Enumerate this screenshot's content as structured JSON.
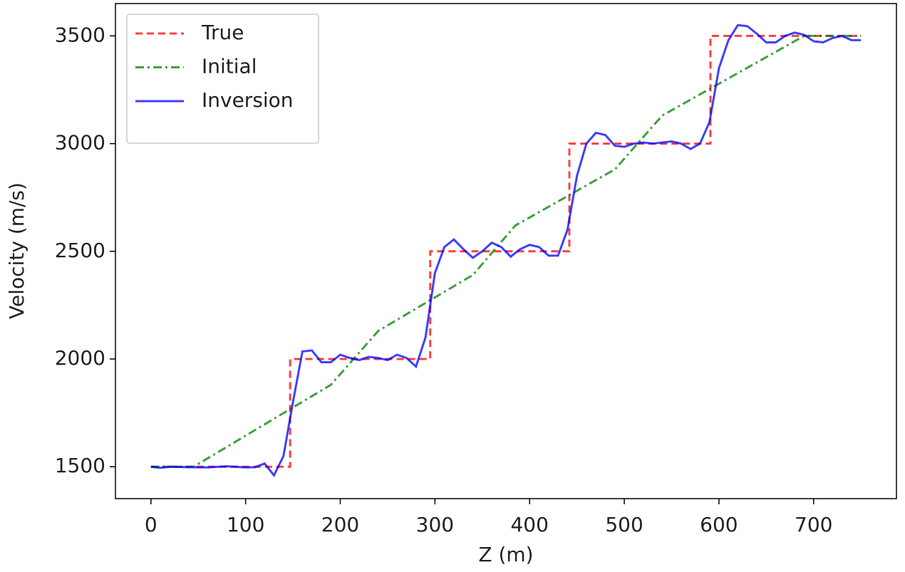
{
  "chart_data": {
    "type": "line",
    "xlabel": "Z (m)",
    "ylabel": "Velocity (m/s)",
    "xlim": [
      -37.5,
      787.5
    ],
    "ylim": [
      1352,
      3650
    ],
    "xticks": [
      0,
      100,
      200,
      300,
      400,
      500,
      600,
      700
    ],
    "yticks": [
      1500,
      2000,
      2500,
      3000,
      3500
    ],
    "grid": false,
    "legend": "upper left",
    "series": [
      {
        "name": "True",
        "color": "#ff0000",
        "dash": "dashed",
        "x": [
          0,
          147,
          147,
          295,
          295,
          442,
          442,
          591,
          591,
          750
        ],
        "values": [
          1500,
          1500,
          2000,
          2000,
          2500,
          2500,
          3000,
          3000,
          3500,
          3500
        ]
      },
      {
        "name": "Initial",
        "color": "#008000",
        "dash": "dashdot",
        "x": [
          0,
          45,
          190,
          240,
          340,
          385,
          490,
          540,
          690,
          750
        ],
        "values": [
          1500,
          1500,
          1880,
          2130,
          2390,
          2620,
          2880,
          3130,
          3500,
          3500
        ]
      },
      {
        "name": "Inversion",
        "color": "#0000ff",
        "dash": "solid",
        "x": [
          0,
          10,
          20,
          40,
          60,
          80,
          100,
          110,
          120,
          130,
          140,
          150,
          160,
          170,
          180,
          190,
          200,
          210,
          220,
          230,
          240,
          250,
          260,
          270,
          280,
          290,
          300,
          310,
          320,
          330,
          340,
          350,
          360,
          370,
          380,
          390,
          400,
          410,
          420,
          430,
          440,
          450,
          460,
          470,
          480,
          490,
          500,
          510,
          520,
          530,
          540,
          550,
          560,
          570,
          580,
          590,
          600,
          610,
          620,
          630,
          640,
          650,
          660,
          670,
          680,
          690,
          700,
          710,
          720,
          730,
          740,
          750
        ],
        "values": [
          1500,
          1495,
          1500,
          1498,
          1497,
          1502,
          1497,
          1498,
          1515,
          1460,
          1550,
          1800,
          2035,
          2040,
          1985,
          1985,
          2020,
          2005,
          1995,
          2010,
          2005,
          1995,
          2020,
          2005,
          1965,
          2100,
          2400,
          2520,
          2555,
          2510,
          2470,
          2500,
          2540,
          2520,
          2475,
          2510,
          2530,
          2520,
          2480,
          2480,
          2600,
          2850,
          3000,
          3050,
          3040,
          2990,
          2985,
          3000,
          3005,
          3000,
          3005,
          3010,
          3000,
          2975,
          3000,
          3100,
          3350,
          3480,
          3550,
          3545,
          3510,
          3470,
          3470,
          3500,
          3515,
          3505,
          3475,
          3470,
          3490,
          3500,
          3480,
          3480
        ]
      }
    ]
  }
}
